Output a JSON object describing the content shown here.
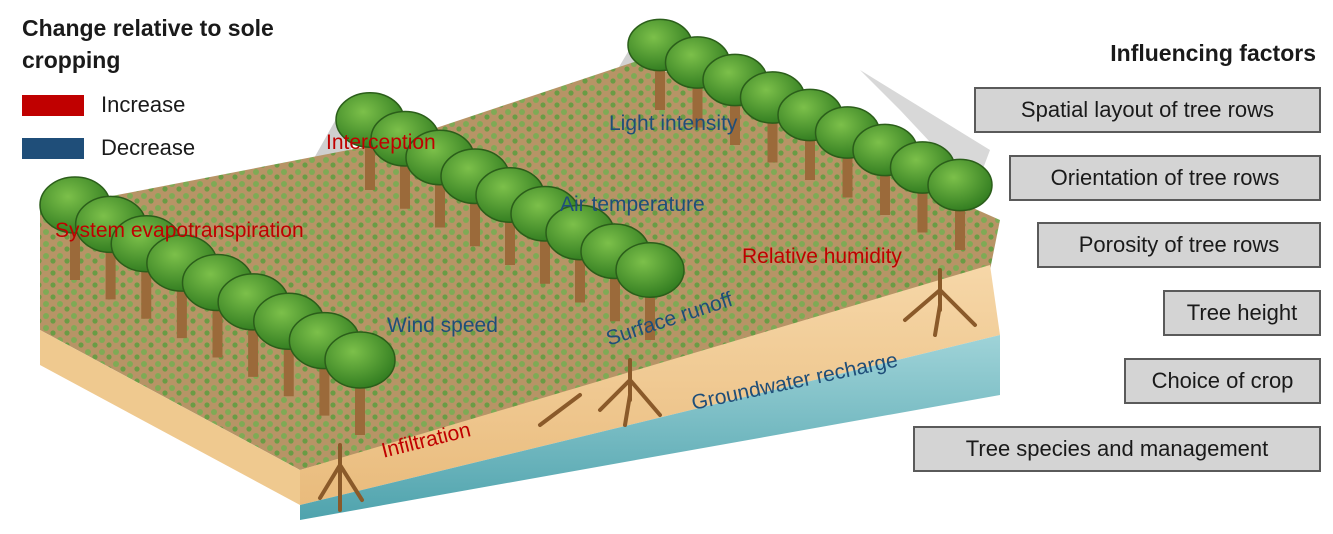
{
  "legend": {
    "title": "Change relative to sole cropping",
    "increase_label": "Increase",
    "decrease_label": "Decrease",
    "increase_color": "#c00000",
    "decrease_color": "#1f4e79"
  },
  "effects": [
    {
      "id": "light-intensity",
      "text": "Light intensity",
      "change": "decrease"
    },
    {
      "id": "interception",
      "text": "Interception",
      "change": "increase"
    },
    {
      "id": "air-temperature",
      "text": "Air temperature",
      "change": "decrease"
    },
    {
      "id": "system-evapotranspiration",
      "text": "System evapotranspiration",
      "change": "increase"
    },
    {
      "id": "relative-humidity",
      "text": "Relative humidity",
      "change": "increase"
    },
    {
      "id": "wind-speed",
      "text": "Wind speed",
      "change": "decrease"
    },
    {
      "id": "surface-runoff",
      "text": "Surface runoff",
      "change": "decrease"
    },
    {
      "id": "groundwater-recharge",
      "text": "Groundwater recharge",
      "change": "decrease"
    },
    {
      "id": "infiltration",
      "text": "Infiltration",
      "change": "increase"
    }
  ],
  "factors": {
    "title": "Influencing factors",
    "items": [
      "Spatial layout of tree rows",
      "Orientation of tree rows",
      "Porosity of tree rows",
      "Tree height",
      "Choice of crop",
      "Tree species and management"
    ]
  }
}
